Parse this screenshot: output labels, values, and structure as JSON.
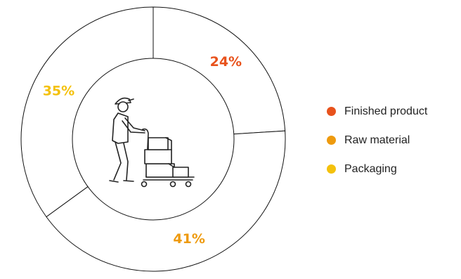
{
  "chart_data": {
    "type": "pie",
    "style": "donut",
    "categories": [
      "Finished product",
      "Raw material",
      "Packaging"
    ],
    "values": [
      24,
      41,
      35
    ],
    "value_labels": [
      "24%",
      "41%",
      "35%"
    ],
    "colors": [
      "#e8521c",
      "#ee9a0e",
      "#f4c10c"
    ],
    "legend_position": "right",
    "center_icon": "worker-pushing-cart-of-boxes-icon"
  }
}
